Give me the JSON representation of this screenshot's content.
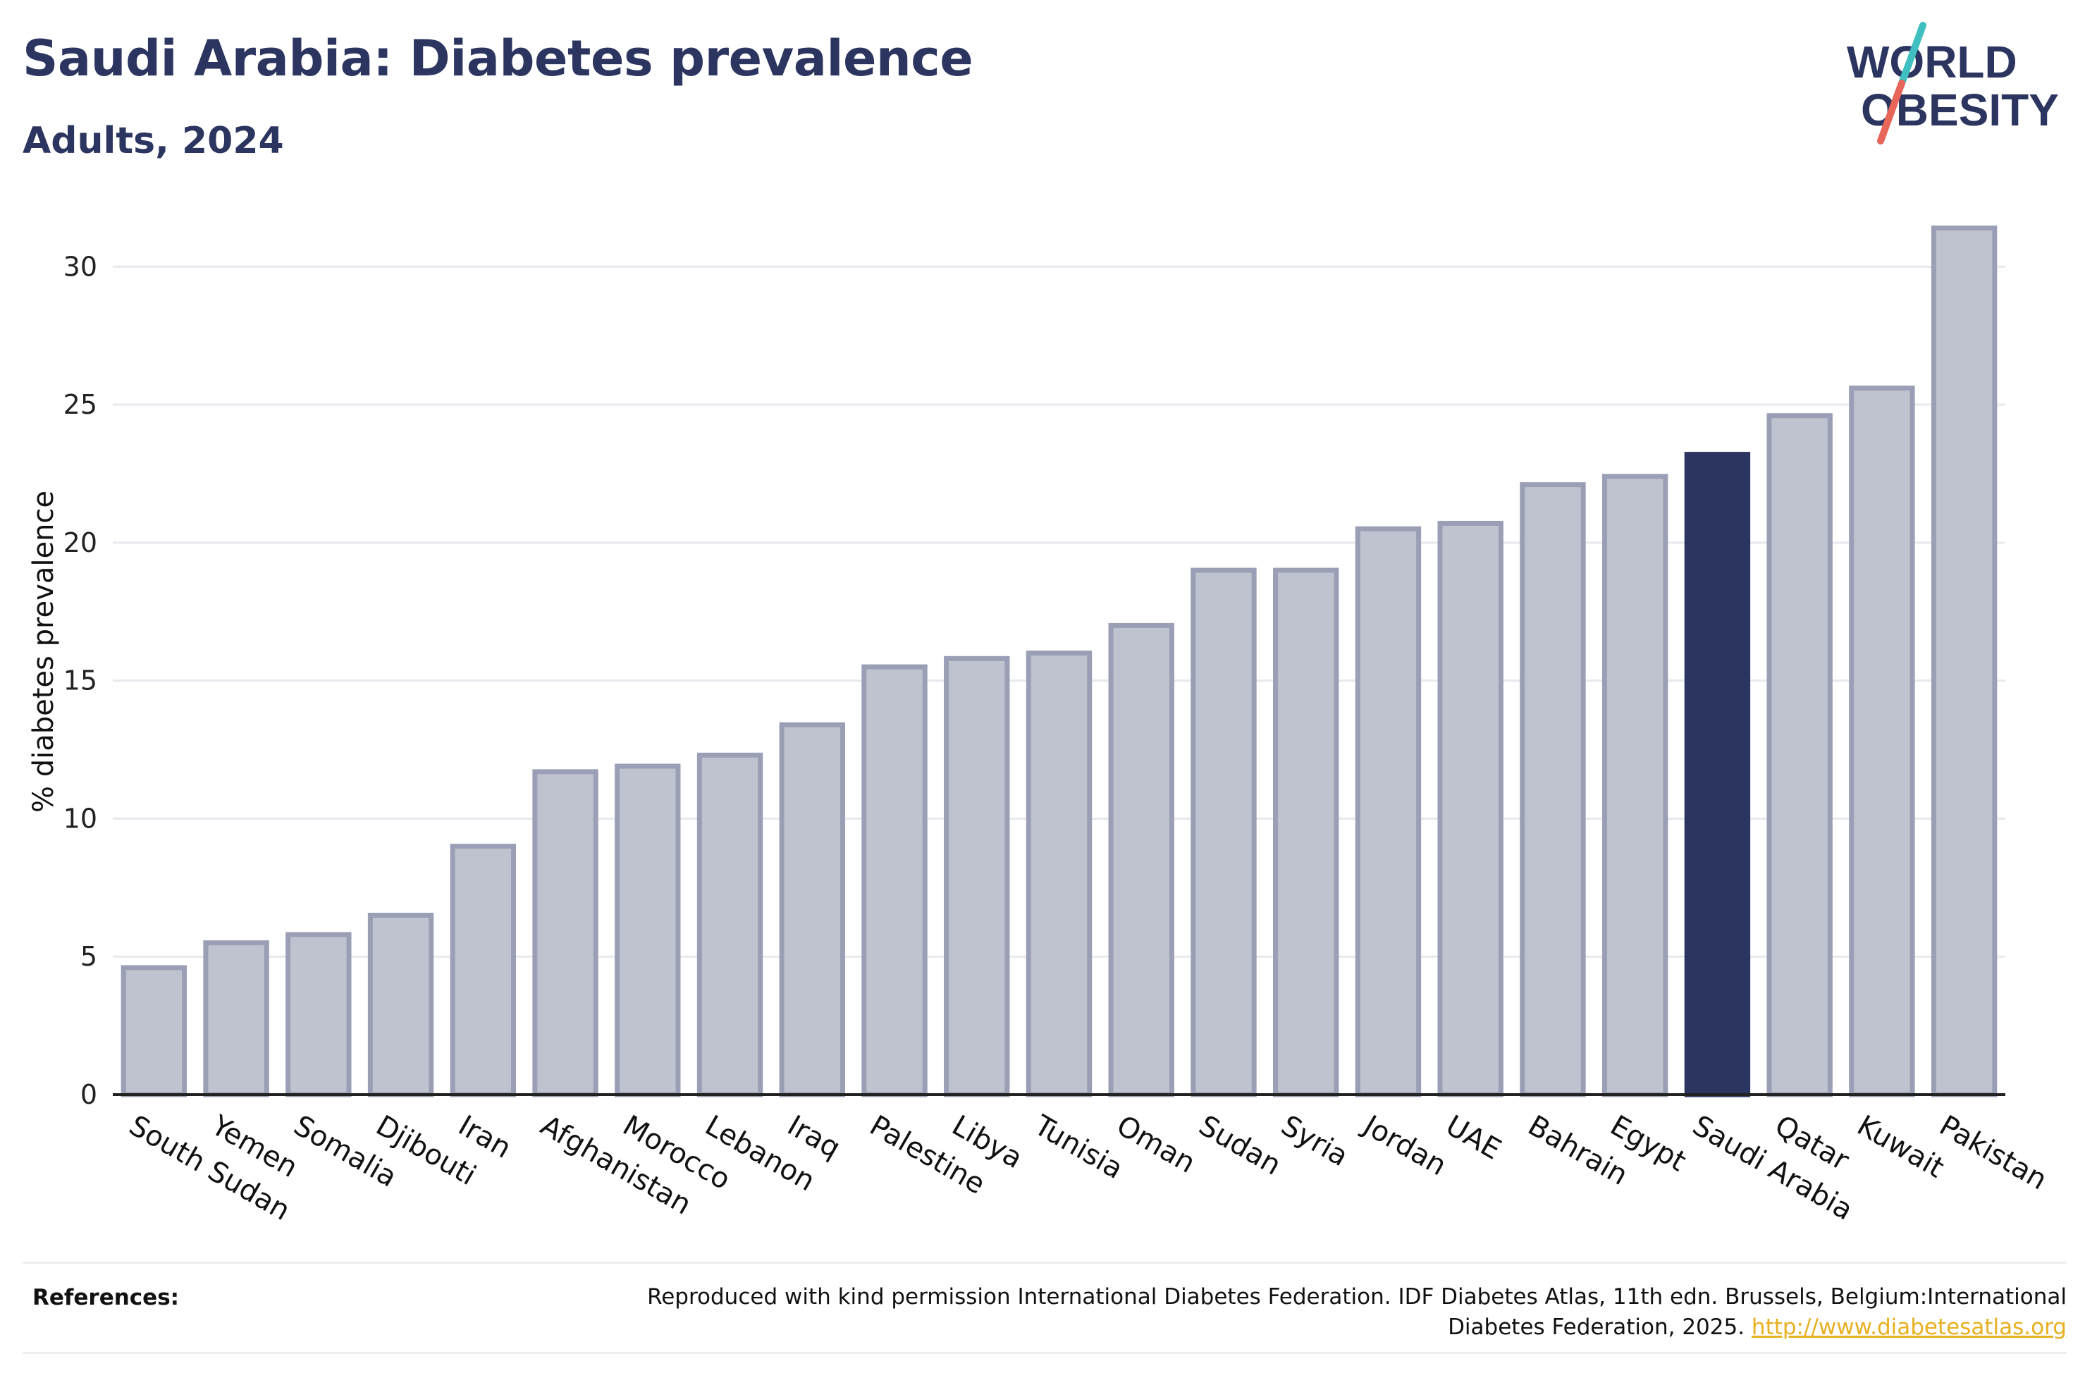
{
  "header": {
    "title": "Saudi Arabia: Diabetes prevalence",
    "subtitle": "Adults, 2024"
  },
  "logo": {
    "line1": "WORLD",
    "line2": "OBESITY",
    "colors": {
      "text": "#2b3560",
      "slash_top": "#3fbfbf",
      "slash_bottom": "#e8655a"
    }
  },
  "chart_data": {
    "type": "bar",
    "categories": [
      "South Sudan",
      "Yemen",
      "Somalia",
      "Djibouti",
      "Iran",
      "Afghanistan",
      "Morocco",
      "Lebanon",
      "Iraq",
      "Palestine",
      "Libya",
      "Tunisia",
      "Oman",
      "Sudan",
      "Syria",
      "Jordan",
      "UAE",
      "Bahrain",
      "Egypt",
      "Saudi Arabia",
      "Qatar",
      "Kuwait",
      "Pakistan"
    ],
    "values": [
      4.6,
      5.5,
      5.8,
      6.5,
      9.0,
      11.7,
      11.9,
      12.3,
      13.4,
      15.5,
      15.8,
      16.0,
      17.0,
      19.0,
      19.0,
      20.5,
      20.7,
      22.1,
      22.4,
      23.2,
      24.6,
      25.6,
      31.4
    ],
    "highlight": "Saudi Arabia",
    "ylabel": "% diabetes prevalence",
    "xlabel": "",
    "ylim": [
      0,
      32
    ],
    "yticks": [
      0,
      5,
      10,
      15,
      20,
      25,
      30
    ],
    "grid": true,
    "colors": {
      "bar_fill": "#bfc2cf",
      "bar_stroke": "#9a9fb6",
      "highlight": "#2b3560",
      "grid": "#e8e9ee",
      "axis": "#222222"
    }
  },
  "references": {
    "label": "References:",
    "text": "Reproduced with kind permission International Diabetes Federation. IDF Diabetes Atlas, 11th edn. Brussels, Belgium:International Diabetes Federation, 2025.",
    "link": "http://www.diabetesatlas.org"
  }
}
